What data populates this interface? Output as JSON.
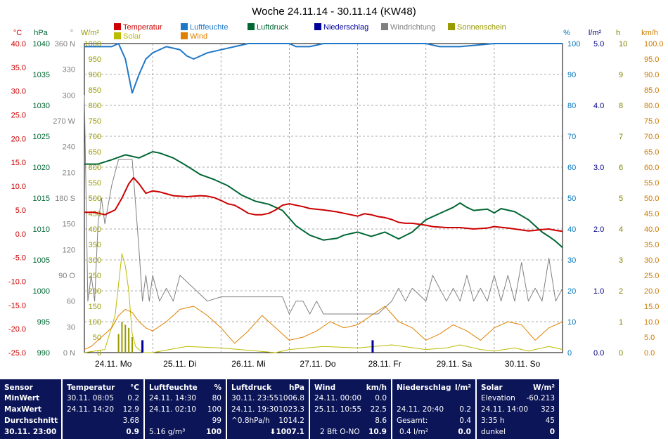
{
  "chart_data": {
    "type": "line",
    "title": "Woche 24.11.14 - 30.11.14 (KW48)",
    "x_labels": [
      "24.11. Mo",
      "25.11. Di",
      "26.11. Mi",
      "27.11. Do",
      "28.11. Fr",
      "29.11. Sa",
      "30.11. So"
    ],
    "xlim": [
      0,
      7
    ],
    "axes": {
      "temperature": {
        "unit": "°C",
        "color": "#cc0000",
        "ylim": [
          -25,
          40
        ],
        "ticks": [
          "40.0",
          "35.0",
          "30.0",
          "25.0",
          "20.0",
          "15.0",
          "10.0",
          "5.0",
          "0.0",
          "-5.0",
          "-10.0",
          "-15.0",
          "-20.0",
          "-25.0"
        ]
      },
      "pressure": {
        "unit": "hPa",
        "color": "#006633",
        "ylim": [
          990,
          1040
        ],
        "ticks": [
          "1040",
          "1035",
          "1030",
          "1025",
          "1020",
          "1015",
          "1010",
          "1005",
          "1000",
          "995",
          "990"
        ]
      },
      "wind_direction": {
        "unit": "°",
        "color": "#808080",
        "ylim": [
          0,
          360
        ],
        "ticks": [
          "360 N",
          "330",
          "300",
          "270 W",
          "240",
          "210",
          "180 S",
          "150",
          "120",
          "90 O",
          "60",
          "30",
          "0 N"
        ]
      },
      "solar": {
        "unit": "W/m²",
        "color": "#999900",
        "ylim": [
          0,
          1000
        ],
        "ticks": [
          "1000",
          "950",
          "900",
          "850",
          "800",
          "750",
          "700",
          "650",
          "600",
          "550",
          "500",
          "450",
          "400",
          "350",
          "300",
          "250",
          "200",
          "150",
          "100",
          "50",
          "0"
        ]
      },
      "humidity": {
        "unit": "%",
        "color": "#0077bb",
        "ylim": [
          0,
          100
        ],
        "ticks": [
          "100",
          "90",
          "80",
          "70",
          "60",
          "50",
          "40",
          "30",
          "20",
          "10",
          "0"
        ]
      },
      "precipitation": {
        "unit": "l/m²",
        "color": "#000080",
        "ylim": [
          0,
          5
        ],
        "ticks": [
          "5.0",
          "4.0",
          "3.0",
          "2.0",
          "1.0",
          "0.0"
        ]
      },
      "sunshine": {
        "unit": "h",
        "color": "#808000",
        "ylim": [
          0,
          10
        ],
        "ticks": [
          "10",
          "9",
          "8",
          "7",
          "6",
          "5",
          "4",
          "3",
          "2",
          "1",
          "0"
        ]
      },
      "wind": {
        "unit": "km/h",
        "color": "#cc7a00",
        "ylim": [
          0,
          100
        ],
        "ticks": [
          "100.0",
          "95.0",
          "90.0",
          "85.0",
          "80.0",
          "75.0",
          "70.0",
          "65.0",
          "60.0",
          "55.0",
          "50.0",
          "45.0",
          "40.0",
          "35.0",
          "30.0",
          "25.0",
          "20.0",
          "15.0",
          "10.0",
          "5.0",
          "0.0"
        ]
      }
    },
    "legend": [
      {
        "name": "Temperatur",
        "color": "#cc0000"
      },
      {
        "name": "Luftfeuchte",
        "color": "#1f77c8"
      },
      {
        "name": "Luftdruck",
        "color": "#006633"
      },
      {
        "name": "Niederschlag",
        "color": "#000099"
      },
      {
        "name": "Windrichtung",
        "color": "#808080"
      },
      {
        "name": "Sonnenschein",
        "color": "#999900"
      },
      {
        "name": "Solar",
        "color": "#bbbb00"
      },
      {
        "name": "Wind",
        "color": "#e08000"
      }
    ],
    "series": [
      {
        "name": "Temperatur",
        "axis": "temperature",
        "color": "#cc0000",
        "x": [
          0,
          0.15,
          0.3,
          0.45,
          0.55,
          0.65,
          0.72,
          0.8,
          0.9,
          1.0,
          1.1,
          1.2,
          1.3,
          1.5,
          1.7,
          1.8,
          1.9,
          2.0,
          2.1,
          2.2,
          2.3,
          2.4,
          2.5,
          2.6,
          2.7,
          2.8,
          2.9,
          3.0,
          3.1,
          3.2,
          3.3,
          3.5,
          3.7,
          3.8,
          3.9,
          4.0,
          4.1,
          4.2,
          4.3,
          4.4,
          4.5,
          4.6,
          4.7,
          4.8,
          4.9,
          5.0,
          5.1,
          5.3,
          5.5,
          5.7,
          5.9,
          6.0,
          6.2,
          6.3,
          6.4,
          6.5,
          6.6,
          6.7,
          6.8,
          6.9,
          7.0
        ],
        "y": [
          4.5,
          4.5,
          4.0,
          5.0,
          7.5,
          10.5,
          11.8,
          10.5,
          8.5,
          9.0,
          8.8,
          8.4,
          8.0,
          7.8,
          8.0,
          7.9,
          7.6,
          7.0,
          6.3,
          6.0,
          5.2,
          4.3,
          4.0,
          4.0,
          4.3,
          5.0,
          6.0,
          6.3,
          6.0,
          5.7,
          5.3,
          5.0,
          4.6,
          4.3,
          4.0,
          3.7,
          4.2,
          4.0,
          3.6,
          3.4,
          3.0,
          2.4,
          2.2,
          2.2,
          2.0,
          1.8,
          1.5,
          1.3,
          1.3,
          1.0,
          1.2,
          1.5,
          1.2,
          1.0,
          0.8,
          0.6,
          0.7,
          0.9,
          1.0,
          0.7,
          0.5
        ]
      },
      {
        "name": "Luftfeuchte",
        "axis": "humidity",
        "color": "#1f77c8",
        "x": [
          0,
          0.2,
          0.4,
          0.5,
          0.6,
          0.7,
          0.8,
          0.9,
          1.0,
          1.2,
          1.4,
          1.5,
          1.6,
          1.7,
          1.8,
          2.0,
          2.2,
          2.4,
          2.6,
          2.8,
          3.0,
          3.1,
          3.3,
          3.5,
          3.7,
          4.0,
          4.3,
          4.6,
          4.7,
          4.8,
          5.0,
          5.2,
          5.5,
          6.0,
          6.5,
          7.0
        ],
        "y": [
          99,
          99,
          99,
          100,
          95,
          84,
          90,
          95,
          97,
          99,
          98,
          96,
          95,
          96,
          97,
          98,
          99,
          100,
          100,
          100,
          100,
          99,
          99,
          100,
          100,
          100,
          100,
          100,
          100,
          100,
          100,
          99,
          99,
          100,
          100,
          100
        ]
      },
      {
        "name": "Luftdruck",
        "axis": "pressure",
        "color": "#006633",
        "x": [
          0,
          0.2,
          0.4,
          0.6,
          0.8,
          1.0,
          1.1,
          1.3,
          1.5,
          1.7,
          1.9,
          2.1,
          2.3,
          2.5,
          2.7,
          2.9,
          3.1,
          3.3,
          3.5,
          3.7,
          3.8,
          4.0,
          4.2,
          4.4,
          4.6,
          4.8,
          5.0,
          5.2,
          5.4,
          5.5,
          5.6,
          5.7,
          5.9,
          6.0,
          6.1,
          6.3,
          6.5,
          6.7,
          6.8,
          6.9,
          7.0
        ],
        "y": [
          1020.5,
          1020.5,
          1021.2,
          1022.0,
          1021.5,
          1022.5,
          1022.3,
          1021.5,
          1020.2,
          1018.8,
          1018.0,
          1017.0,
          1015.5,
          1014.5,
          1014.0,
          1013.0,
          1010.5,
          1009.0,
          1008.2,
          1008.5,
          1009.0,
          1009.5,
          1008.8,
          1009.5,
          1008.4,
          1009.5,
          1011.5,
          1012.5,
          1013.5,
          1014.2,
          1013.5,
          1013.0,
          1013.2,
          1012.6,
          1013.3,
          1012.8,
          1011.5,
          1009.5,
          1008.8,
          1008.0,
          1007.0
        ]
      },
      {
        "name": "Windrichtung",
        "axis": "wind_direction",
        "color": "#808080",
        "x": [
          0,
          0.05,
          0.1,
          0.15,
          0.2,
          0.25,
          0.3,
          0.4,
          0.5,
          0.6,
          0.7,
          0.8,
          0.85,
          0.9,
          0.95,
          1.0,
          1.1,
          1.2,
          1.3,
          1.4,
          1.6,
          1.8,
          2.0,
          2.3,
          2.6,
          2.9,
          3.0,
          3.1,
          3.2,
          3.3,
          3.4,
          3.5,
          3.7,
          3.9,
          4.1,
          4.3,
          4.5,
          4.6,
          4.7,
          4.8,
          5.0,
          5.1,
          5.2,
          5.3,
          5.4,
          5.5,
          5.6,
          5.7,
          5.8,
          5.9,
          6.0,
          6.1,
          6.2,
          6.3,
          6.4,
          6.5,
          6.6,
          6.7,
          6.8,
          6.9,
          7.0
        ],
        "y": [
          300,
          60,
          90,
          60,
          150,
          180,
          150,
          195,
          225,
          225,
          225,
          120,
          60,
          90,
          60,
          90,
          60,
          75,
          60,
          90,
          75,
          60,
          65,
          65,
          65,
          65,
          45,
          60,
          60,
          45,
          60,
          45,
          45,
          45,
          45,
          45,
          60,
          75,
          60,
          75,
          60,
          90,
          75,
          60,
          75,
          60,
          90,
          60,
          75,
          60,
          90,
          60,
          90,
          60,
          105,
          60,
          75,
          60,
          110,
          60,
          75
        ]
      },
      {
        "name": "Wind",
        "axis": "wind",
        "color": "#e08000",
        "x": [
          0,
          0.1,
          0.2,
          0.3,
          0.4,
          0.5,
          0.6,
          0.7,
          0.8,
          0.9,
          1.0,
          1.2,
          1.4,
          1.6,
          1.8,
          2.0,
          2.2,
          2.4,
          2.6,
          2.8,
          3.0,
          3.2,
          3.4,
          3.6,
          3.8,
          4.0,
          4.2,
          4.4,
          4.6,
          4.8,
          5.0,
          5.2,
          5.4,
          5.6,
          5.8,
          6.0,
          6.2,
          6.4,
          6.6,
          6.8,
          7.0
        ],
        "y": [
          1,
          2,
          4,
          6,
          8,
          12,
          14,
          13,
          10,
          8,
          7,
          10,
          14,
          15,
          12,
          8,
          3,
          7,
          12,
          8,
          4,
          5,
          7,
          10,
          8,
          9,
          12,
          15,
          10,
          8,
          4,
          6,
          9,
          7,
          4,
          8,
          10,
          9,
          4,
          8,
          10
        ]
      },
      {
        "name": "Solar",
        "axis": "solar",
        "color": "#bbbb00",
        "x": [
          0,
          0.3,
          0.45,
          0.55,
          0.6,
          0.65,
          0.7,
          0.75,
          0.85,
          1.0,
          1.5,
          2.0,
          2.8,
          3.0,
          3.5,
          4.0,
          4.5,
          5.0,
          5.3,
          5.5,
          5.8,
          6.0,
          6.3,
          6.5,
          6.8,
          7.0
        ],
        "y": [
          0,
          10,
          120,
          320,
          280,
          200,
          60,
          20,
          0,
          0,
          20,
          15,
          0,
          10,
          20,
          15,
          25,
          10,
          15,
          25,
          10,
          5,
          15,
          5,
          20,
          10
        ]
      },
      {
        "name": "Sonnenschein",
        "axis": "sunshine",
        "color": "#999900",
        "x": [
          0.5,
          0.55,
          0.6,
          0.65,
          0.7
        ],
        "y": [
          0.6,
          1.0,
          0.9,
          0.8,
          0.5
        ]
      },
      {
        "name": "Niederschlag",
        "axis": "precipitation",
        "color": "#000099",
        "x": [
          0.85,
          4.22
        ],
        "y": [
          0.2,
          0.2
        ]
      }
    ],
    "grid": true
  },
  "stats": {
    "labels": {
      "sensor": "Sensor",
      "min": "MinWert",
      "max": "MaxWert",
      "avg": "Durchschnitt",
      "time": "30.11. 23:00"
    },
    "temperature": {
      "title": "Temperatur",
      "unit": "°C",
      "min_time": "30.11.  08:05",
      "min": "0.2",
      "max_time": "24.11.  14:20",
      "max": "12.9",
      "avg": "3.68",
      "current": "0.9"
    },
    "humidity": {
      "title": "Luftfeuchte",
      "unit": "%",
      "min_time": "24.11.  14:30",
      "min": "80",
      "max_time": "24.11.  02:10",
      "max": "100",
      "avg": "99",
      "abs": "5.16 g/m³",
      "current": "100"
    },
    "pressure": {
      "title": "Luftdruck",
      "unit": "hPa",
      "min_time": "30.11.  23:55",
      "min": "1006.8",
      "max_time": "24.11.  19:30",
      "max": "1023.3",
      "trend": "^0.8hPa/h",
      "avg": "1014.2",
      "current": "⬇1007.1"
    },
    "wind": {
      "title": "Wind",
      "unit": "km/h",
      "min_time": "24.11.  00:00",
      "min": "0.0",
      "max_time": "25.11.  10:55",
      "max": "22.5",
      "avg": "8.6",
      "bft": "2 Bft O-NO",
      "current": "10.9"
    },
    "precipitation": {
      "title": "Niederschlag",
      "unit": "l/m²",
      "max_time": "24.11.  20:40",
      "max": "0.2",
      "total_label": "Gesamt:",
      "total": "0.4",
      "current_rate": "0.4 l/m²",
      "current": "0.0"
    },
    "solar": {
      "title": "Solar",
      "unit": "W/m²",
      "elev_label": "Elevation",
      "elevation": "-60.213",
      "max_time": "24.11.  14:00",
      "max": "323",
      "sunshine": "3:35 h",
      "avg": "45",
      "state": "dunkel",
      "current": "0"
    }
  }
}
